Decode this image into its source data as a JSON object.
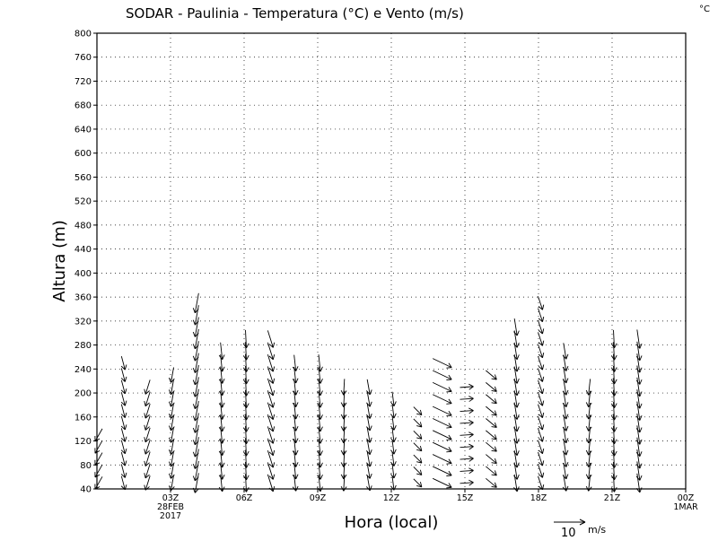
{
  "chart_data": {
    "type": "vector",
    "title": "SODAR - Paulinia - Temperatura (°C) e Vento (m/s)",
    "corner_label": "°C",
    "xlabel": "Hora (local)",
    "ylabel": "Altura (m)",
    "xlim_hours": [
      0,
      24
    ],
    "ylim": [
      40,
      800
    ],
    "y_ticks": [
      40,
      80,
      120,
      160,
      200,
      240,
      280,
      320,
      360,
      400,
      440,
      480,
      520,
      560,
      600,
      640,
      680,
      720,
      760,
      800
    ],
    "x_ticks": [
      {
        "h": 3,
        "lines": [
          "03Z",
          "28FEB",
          "2017"
        ]
      },
      {
        "h": 6,
        "lines": [
          "06Z"
        ]
      },
      {
        "h": 9,
        "lines": [
          "09Z"
        ]
      },
      {
        "h": 12,
        "lines": [
          "12Z"
        ]
      },
      {
        "h": 15,
        "lines": [
          "15Z"
        ]
      },
      {
        "h": 18,
        "lines": [
          "18Z"
        ]
      },
      {
        "h": 21,
        "lines": [
          "21Z"
        ]
      },
      {
        "h": 24,
        "lines": [
          "00Z",
          "1MAR"
        ]
      }
    ],
    "grid": true,
    "reference_vector": {
      "value": "10",
      "unit": "m/s"
    },
    "wind_profiles": [
      {
        "h": 0.0,
        "top": 140,
        "u": -0.8,
        "v": -1.4
      },
      {
        "h": 1.0,
        "top": 250,
        "u": 0.4,
        "v": -1.5
      },
      {
        "h": 2.0,
        "top": 220,
        "u": -0.5,
        "v": -1.6
      },
      {
        "h": 3.0,
        "top": 240,
        "u": -0.3,
        "v": -1.7
      },
      {
        "h": 4.0,
        "top": 360,
        "u": -0.4,
        "v": -2.2
      },
      {
        "h": 5.0,
        "top": 280,
        "u": 0.2,
        "v": -1.9
      },
      {
        "h": 6.0,
        "top": 300,
        "u": 0.1,
        "v": -2.0
      },
      {
        "h": 7.0,
        "top": 300,
        "u": 0.6,
        "v": -1.9
      },
      {
        "h": 8.0,
        "top": 260,
        "u": 0.2,
        "v": -1.8
      },
      {
        "h": 9.0,
        "top": 260,
        "u": 0.2,
        "v": -1.9
      },
      {
        "h": 10.0,
        "top": 220,
        "u": -0.1,
        "v": -1.8
      },
      {
        "h": 11.0,
        "top": 220,
        "u": 0.3,
        "v": -1.7
      },
      {
        "h": 12.0,
        "top": 200,
        "u": 0.2,
        "v": -1.6
      },
      {
        "h": 13.0,
        "top": 180,
        "u": 0.9,
        "v": -0.9
      },
      {
        "h": 14.0,
        "top": 260,
        "u": 2.1,
        "v": -1.0
      },
      {
        "h": 15.0,
        "top": 220,
        "u": 1.5,
        "v": 0.1
      },
      {
        "h": 16.0,
        "top": 240,
        "u": 1.2,
        "v": -1.0
      },
      {
        "h": 17.0,
        "top": 320,
        "u": 0.3,
        "v": -1.9
      },
      {
        "h": 18.0,
        "top": 360,
        "u": 0.5,
        "v": -1.5
      },
      {
        "h": 19.0,
        "top": 270,
        "u": 0.3,
        "v": -1.8
      },
      {
        "h": 20.0,
        "top": 220,
        "u": -0.2,
        "v": -1.8
      },
      {
        "h": 21.0,
        "top": 300,
        "u": 0.1,
        "v": -2.0
      },
      {
        "h": 22.0,
        "top": 300,
        "u": 0.3,
        "v": -2.1
      }
    ]
  }
}
